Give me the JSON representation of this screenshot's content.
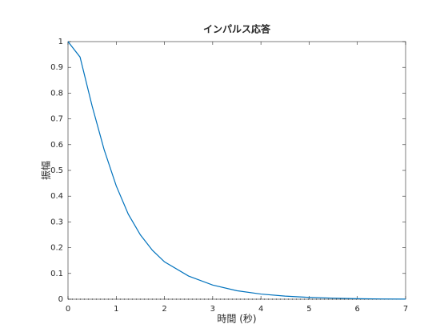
{
  "chart_data": {
    "type": "line",
    "title": "インパルス応答",
    "x_label": "時間 (秒)",
    "y_label": "振幅",
    "x": [
      0,
      0.25,
      0.5,
      0.75,
      1,
      1.25,
      1.5,
      1.75,
      2,
      2.5,
      3,
      3.5,
      4,
      4.5,
      5,
      5.5,
      6,
      6.5,
      7
    ],
    "series": [
      {
        "color": "#0072bd",
        "values": [
          1,
          0.94,
          0.75,
          0.58,
          0.44,
          0.33,
          0.25,
          0.19,
          0.145,
          0.09,
          0.055,
          0.033,
          0.02,
          0.012,
          0.007,
          0.004,
          0.002,
          0.001,
          0.0005
        ]
      }
    ],
    "xlim": [
      0,
      7
    ],
    "xticks": [
      0,
      1,
      2,
      3,
      4,
      5,
      6,
      7
    ],
    "ylim": [
      0,
      1
    ],
    "yticks": [
      0,
      0.1,
      0.2,
      0.3,
      0.4,
      0.5,
      0.6,
      0.7,
      0.8,
      0.9,
      1
    ]
  }
}
